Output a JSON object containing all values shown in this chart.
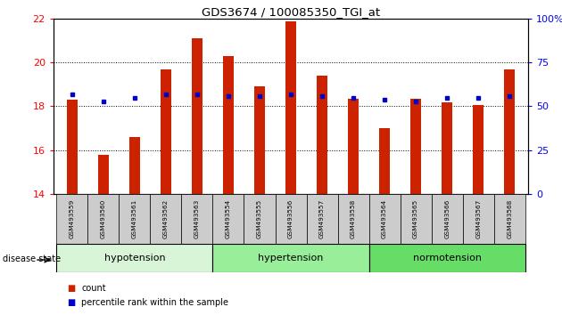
{
  "title": "GDS3674 / 100085350_TGI_at",
  "samples": [
    "GSM493559",
    "GSM493560",
    "GSM493561",
    "GSM493562",
    "GSM493563",
    "GSM493554",
    "GSM493555",
    "GSM493556",
    "GSM493557",
    "GSM493558",
    "GSM493564",
    "GSM493565",
    "GSM493566",
    "GSM493567",
    "GSM493568"
  ],
  "count_values": [
    18.3,
    15.8,
    16.6,
    19.7,
    21.1,
    20.3,
    18.9,
    21.9,
    19.4,
    18.35,
    17.0,
    18.35,
    18.2,
    18.05,
    19.7
  ],
  "percentile_values": [
    57,
    53,
    55,
    57,
    57,
    56,
    56,
    57,
    56,
    55,
    54,
    53,
    55,
    55,
    56
  ],
  "groups": [
    {
      "label": "hypotension",
      "start": 0,
      "end": 5,
      "color": "#d8f5d8"
    },
    {
      "label": "hypertension",
      "start": 5,
      "end": 10,
      "color": "#99ee99"
    },
    {
      "label": "normotension",
      "start": 10,
      "end": 15,
      "color": "#66dd66"
    }
  ],
  "ylim_left": [
    14,
    22
  ],
  "ylim_right": [
    0,
    100
  ],
  "yticks_left": [
    14,
    16,
    18,
    20,
    22
  ],
  "yticks_right": [
    0,
    25,
    50,
    75,
    100
  ],
  "ytick_labels_right": [
    "0",
    "25",
    "50",
    "75",
    "100%"
  ],
  "bar_color": "#cc2200",
  "marker_color": "#0000cc",
  "grid_color": "#000000",
  "bar_width": 0.35,
  "legend_count_label": "count",
  "legend_percentile_label": "percentile rank within the sample",
  "disease_state_label": "disease state"
}
